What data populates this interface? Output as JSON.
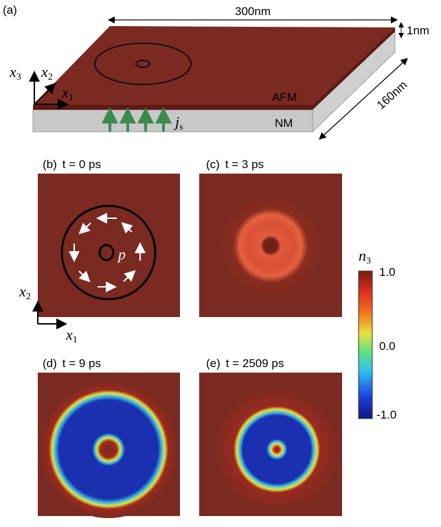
{
  "panel_a": {
    "label": "(a)",
    "width_label": "300nm",
    "thickness_label": "1nm",
    "depth_label": "160nm",
    "afm_label": "AFM",
    "nm_label": "NM",
    "axes": [
      {
        "base": "x",
        "sub": "3"
      },
      {
        "base": "x",
        "sub": "2"
      },
      {
        "base": "x",
        "sub": "1"
      }
    ],
    "current": {
      "base": "j",
      "sub": "s"
    }
  },
  "panels": [
    {
      "label": "(b)",
      "time": "t = 0 ps"
    },
    {
      "label": "(c)",
      "time": "t = 3 ps"
    },
    {
      "label": "(d)",
      "time": "t = 9 ps"
    },
    {
      "label": "(e)",
      "time": "t = 2509 ps"
    }
  ],
  "panel_b": {
    "polarization": "p",
    "axes": [
      {
        "base": "x",
        "sub": "2"
      },
      {
        "base": "x",
        "sub": "1"
      }
    ]
  },
  "colorbar": {
    "title": {
      "base": "n",
      "sub": "3"
    },
    "ticks": [
      "1.0",
      "0.0",
      "-1.0"
    ]
  }
}
